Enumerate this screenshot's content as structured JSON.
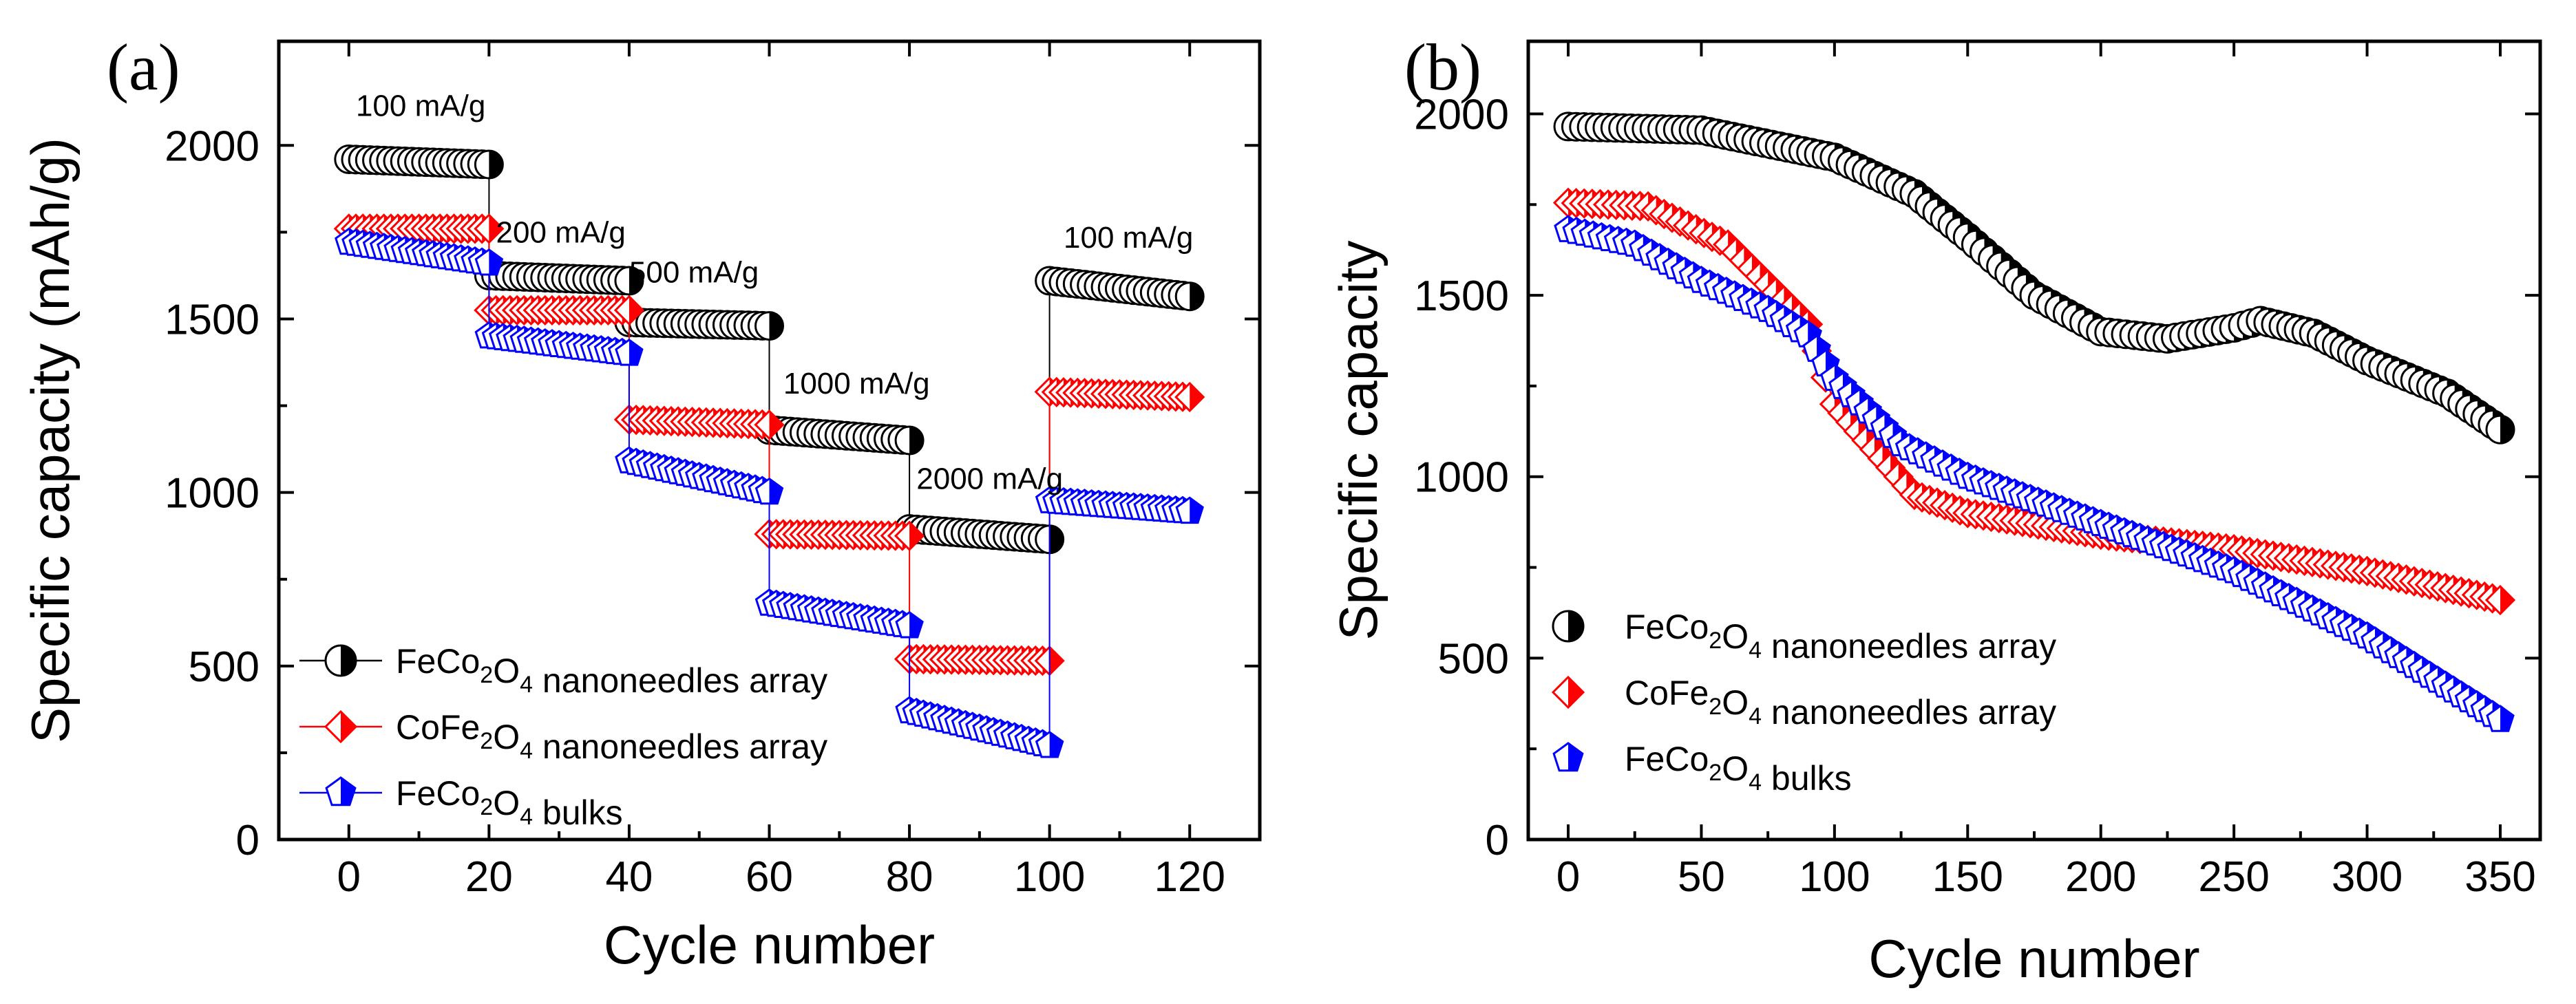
{
  "colors": {
    "black": "#000000",
    "red": "#ff0000",
    "blue": "#0000ff"
  },
  "legend": [
    {
      "key": "s1",
      "prefix": "FeCo",
      "sub1": "2",
      "mid": "O",
      "sub2": "4",
      "suffix": " nanoneedles array",
      "marker": "half-circle-icon",
      "color": "#000000"
    },
    {
      "key": "s2",
      "prefix": "CoFe",
      "sub1": "2",
      "mid": "O",
      "sub2": "4",
      "suffix": " nanoneedles array",
      "marker": "half-diamond-icon",
      "color": "#ff0000"
    },
    {
      "key": "s3",
      "prefix": "FeCo",
      "sub1": "2",
      "mid": "O",
      "sub2": "4",
      "suffix": " bulks",
      "marker": "half-pentagon-icon",
      "color": "#0000ff"
    }
  ],
  "chart_data": [
    {
      "panel_label": "(a)",
      "type": "scatter",
      "xlabel": "Cycle number",
      "ylabel": "Specific capacity (mAh/g)",
      "xlim": [
        -10,
        130
      ],
      "ylim": [
        0,
        2300
      ],
      "xticks": [
        0,
        20,
        40,
        60,
        80,
        100,
        120
      ],
      "yticks": [
        0,
        500,
        1000,
        1500,
        2000
      ],
      "xtick_labels": [
        "0",
        "20",
        "40",
        "60",
        "80",
        "100",
        "120"
      ],
      "ytick_labels": [
        "0",
        "500",
        "1000",
        "1500",
        "2000"
      ],
      "legend_position": "lower-left",
      "rate_labels": [
        {
          "text": "100 mA/g",
          "x": 1,
          "y": 2085
        },
        {
          "text": "200 mA/g",
          "x": 21,
          "y": 1720
        },
        {
          "text": "500 mA/g",
          "x": 40,
          "y": 1605
        },
        {
          "text": "1000 mA/g",
          "x": 62,
          "y": 1285
        },
        {
          "text": "2000 mA/g",
          "x": 81,
          "y": 1010
        },
        {
          "text": "100 mA/g",
          "x": 102,
          "y": 1705
        }
      ],
      "series": [
        {
          "name": "FeCo2O4 nanoneedles array",
          "segments": [
            {
              "x0": 0,
              "x1": 20,
              "y0": 1960,
              "y1": 1945
            },
            {
              "x0": 20,
              "x1": 40,
              "y0": 1625,
              "y1": 1610
            },
            {
              "x0": 40,
              "x1": 60,
              "y0": 1490,
              "y1": 1480
            },
            {
              "x0": 60,
              "x1": 80,
              "y0": 1180,
              "y1": 1150
            },
            {
              "x0": 80,
              "x1": 100,
              "y0": 895,
              "y1": 865
            },
            {
              "x0": 100,
              "x1": 120,
              "y0": 1610,
              "y1": 1565
            }
          ]
        },
        {
          "name": "CoFe2O4 nanoneedles array",
          "segments": [
            {
              "x0": 0,
              "x1": 20,
              "y0": 1760,
              "y1": 1760
            },
            {
              "x0": 20,
              "x1": 40,
              "y0": 1525,
              "y1": 1525
            },
            {
              "x0": 40,
              "x1": 60,
              "y0": 1210,
              "y1": 1195
            },
            {
              "x0": 60,
              "x1": 80,
              "y0": 880,
              "y1": 875
            },
            {
              "x0": 80,
              "x1": 100,
              "y0": 520,
              "y1": 515
            },
            {
              "x0": 100,
              "x1": 120,
              "y0": 1290,
              "y1": 1275
            }
          ]
        },
        {
          "name": "FeCo2O4 bulks",
          "segments": [
            {
              "x0": 0,
              "x1": 20,
              "y0": 1720,
              "y1": 1660
            },
            {
              "x0": 20,
              "x1": 40,
              "y0": 1450,
              "y1": 1400
            },
            {
              "x0": 40,
              "x1": 60,
              "y0": 1090,
              "y1": 1000
            },
            {
              "x0": 60,
              "x1": 80,
              "y0": 680,
              "y1": 615
            },
            {
              "x0": 80,
              "x1": 100,
              "y0": 370,
              "y1": 270
            },
            {
              "x0": 100,
              "x1": 120,
              "y0": 975,
              "y1": 945
            }
          ]
        }
      ]
    },
    {
      "panel_label": "(b)",
      "type": "scatter",
      "xlabel": "Cycle number",
      "ylabel": "Specific capacity",
      "xlim": [
        -15,
        365
      ],
      "ylim": [
        0,
        2200
      ],
      "xticks": [
        0,
        50,
        100,
        150,
        200,
        250,
        300,
        350
      ],
      "yticks": [
        0,
        500,
        1000,
        1500,
        2000
      ],
      "xtick_labels": [
        "0",
        "50",
        "100",
        "150",
        "200",
        "250",
        "300",
        "350"
      ],
      "ytick_labels": [
        "0",
        "500",
        "1000",
        "1500",
        "2000"
      ],
      "legend_position": "lower-left",
      "series": [
        {
          "name": "FeCo2O4 nanoneedles array",
          "x": [
            0,
            50,
            100,
            130,
            150,
            175,
            200,
            225,
            250,
            260,
            280,
            300,
            330,
            350
          ],
          "y": [
            1965,
            1955,
            1880,
            1780,
            1660,
            1500,
            1400,
            1380,
            1410,
            1430,
            1395,
            1320,
            1230,
            1130
          ]
        },
        {
          "name": "CoFe2O4 nanoneedles array",
          "x": [
            0,
            30,
            60,
            90,
            100,
            130,
            150,
            200,
            250,
            300,
            350
          ],
          "y": [
            1755,
            1745,
            1640,
            1420,
            1200,
            950,
            900,
            840,
            800,
            740,
            660
          ]
        },
        {
          "name": "FeCo2O4 bulks",
          "x": [
            0,
            25,
            50,
            75,
            90,
            100,
            125,
            150,
            200,
            250,
            300,
            350
          ],
          "y": [
            1680,
            1640,
            1540,
            1460,
            1390,
            1270,
            1090,
            1000,
            870,
            740,
            560,
            330
          ]
        }
      ]
    }
  ]
}
